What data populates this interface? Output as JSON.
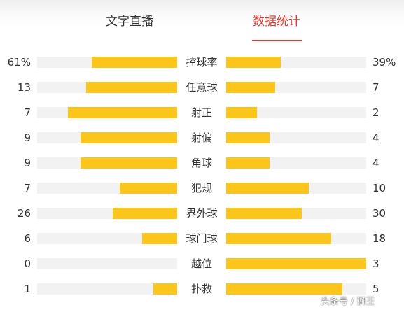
{
  "tabs": [
    {
      "label": "文字直播",
      "active": false
    },
    {
      "label": "数据统计",
      "active": true
    }
  ],
  "colors": {
    "accent": "#d43c33",
    "bar_fill": "#fcc51b",
    "bar_track": "#f2f2f2"
  },
  "stats": [
    {
      "label": "控球率",
      "left": "61%",
      "right": "39%",
      "left_fill": 0.61,
      "right_fill": 0.39
    },
    {
      "label": "任意球",
      "left": "13",
      "right": "7",
      "left_fill": 0.65,
      "right_fill": 0.35
    },
    {
      "label": "射正",
      "left": "7",
      "right": "2",
      "left_fill": 0.78,
      "right_fill": 0.22
    },
    {
      "label": "射偏",
      "left": "9",
      "right": "4",
      "left_fill": 0.69,
      "right_fill": 0.31
    },
    {
      "label": "角球",
      "left": "9",
      "right": "4",
      "left_fill": 0.69,
      "right_fill": 0.31
    },
    {
      "label": "犯规",
      "left": "7",
      "right": "10",
      "left_fill": 0.41,
      "right_fill": 0.59
    },
    {
      "label": "界外球",
      "left": "26",
      "right": "30",
      "left_fill": 0.46,
      "right_fill": 0.54
    },
    {
      "label": "球门球",
      "left": "6",
      "right": "18",
      "left_fill": 0.25,
      "right_fill": 0.75
    },
    {
      "label": "越位",
      "left": "0",
      "right": "3",
      "left_fill": 0.0,
      "right_fill": 1.0
    },
    {
      "label": "扑救",
      "left": "1",
      "right": "5",
      "left_fill": 0.17,
      "right_fill": 0.83
    }
  ],
  "watermark": "头条号 / 狮王"
}
